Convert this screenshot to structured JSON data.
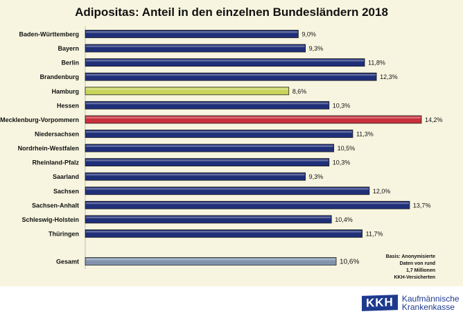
{
  "chart_data": {
    "type": "bar",
    "orientation": "horizontal",
    "title": "Adipositas: Anteil in den einzelnen Bundesländern 2018",
    "categories": [
      "Baden-Württemberg",
      "Bayern",
      "Berlin",
      "Brandenburg",
      "Hamburg",
      "Hessen",
      "Mecklenburg-Vorpommern",
      "Niedersachsen",
      "Nordrhein-Westfalen",
      "Rheinland-Pfalz",
      "Saarland",
      "Sachsen",
      "Sachsen-Anhalt",
      "Schleswig-Holstein",
      "Thüringen",
      "Gesamt"
    ],
    "values": [
      9.0,
      9.3,
      11.8,
      12.3,
      8.6,
      10.3,
      14.2,
      11.3,
      10.5,
      10.3,
      9.3,
      12.0,
      13.7,
      10.4,
      11.7,
      10.6
    ],
    "value_labels": [
      "9,0%",
      "9,3%",
      "11,8%",
      "12,3%",
      "8,6%",
      "10,3%",
      "14,2%",
      "11,3%",
      "10,5%",
      "10,3%",
      "9,3%",
      "12,0%",
      "13,7%",
      "10,4%",
      "11,7%",
      "10,6%"
    ],
    "unit": "%",
    "xlim": [
      0,
      14.2
    ],
    "grid": false,
    "colors": {
      "default": "#1f2f78",
      "Hamburg": "#c8d45a",
      "Mecklenburg-Vorpommern": "#c8303c",
      "Gesamt": "#8193ad"
    }
  },
  "note": [
    "Basis: Anonymisierte",
    "Daten von rund",
    "1,7 Millionen",
    "KKH-Versicherten"
  ],
  "logo": {
    "mark": "KKH",
    "line1": "Kaufmännische",
    "line2": "Krankenkasse"
  }
}
